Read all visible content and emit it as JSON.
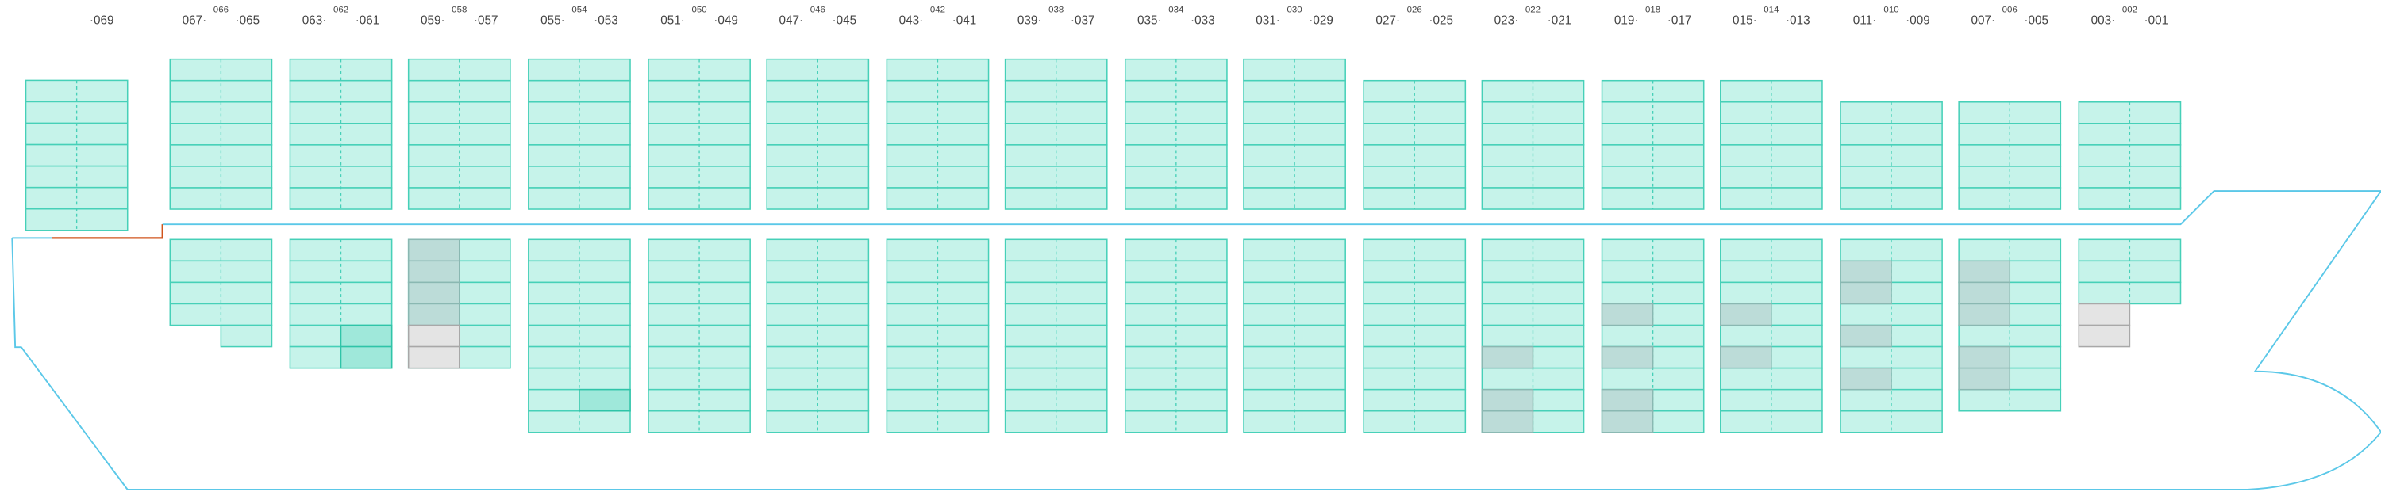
{
  "bays": [
    {
      "label": "·069"
    },
    {
      "left": "067·",
      "center": "066",
      "right": "·065"
    },
    {
      "left": "063·",
      "center": "062",
      "right": "·061"
    },
    {
      "left": "059·",
      "center": "058",
      "right": "·057"
    },
    {
      "left": "055·",
      "center": "054",
      "right": "·053"
    },
    {
      "left": "051·",
      "center": "050",
      "right": "·049"
    },
    {
      "left": "047·",
      "center": "046",
      "right": "·045"
    },
    {
      "left": "043·",
      "center": "042",
      "right": "·041"
    },
    {
      "left": "039·",
      "center": "038",
      "right": "·037"
    },
    {
      "left": "035·",
      "center": "034",
      "right": "·033"
    },
    {
      "left": "031·",
      "center": "030",
      "right": "·029"
    },
    {
      "left": "027·",
      "center": "026",
      "right": "·025"
    },
    {
      "left": "023·",
      "center": "022",
      "right": "·021"
    },
    {
      "left": "019·",
      "center": "018",
      "right": "·017"
    },
    {
      "left": "015·",
      "center": "014",
      "right": "·013"
    },
    {
      "left": "011·",
      "center": "010",
      "right": "·009"
    },
    {
      "left": "007·",
      "center": "006",
      "right": "·005"
    },
    {
      "left": "003·",
      "center": "002",
      "right": "·001"
    }
  ]
}
